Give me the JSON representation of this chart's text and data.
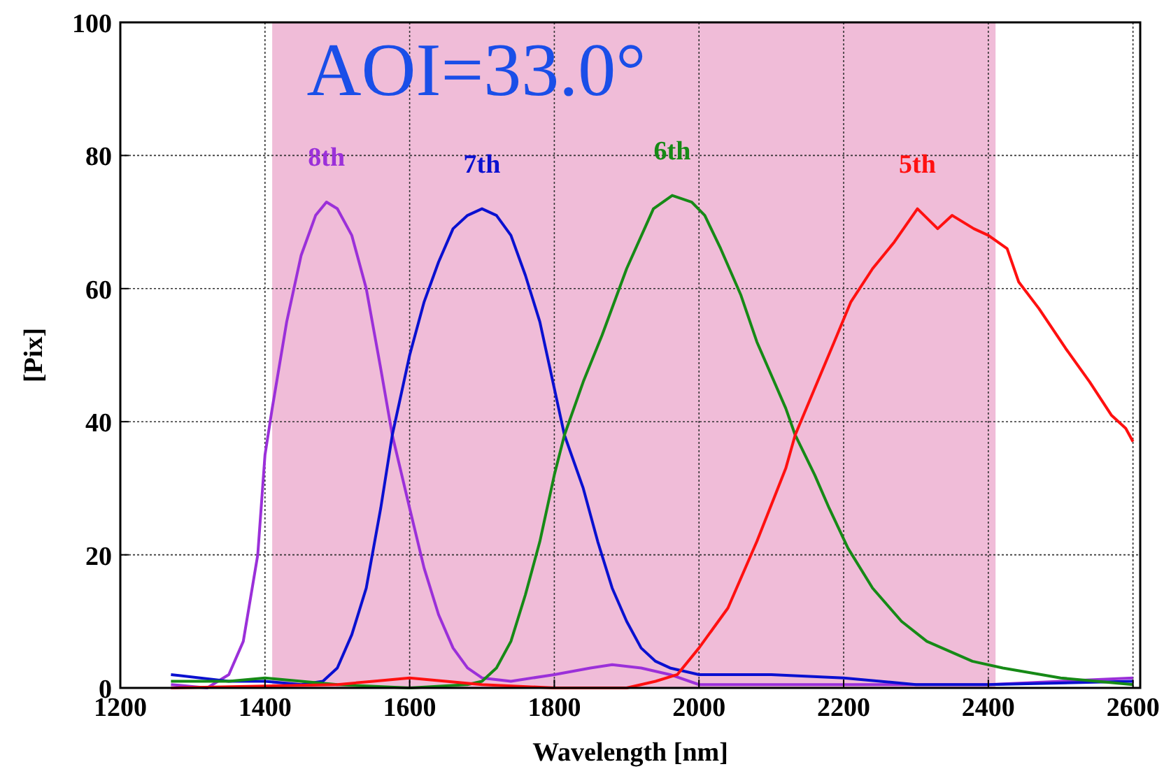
{
  "chart_data": {
    "type": "line",
    "title": "AOI=33.0°",
    "xlabel": "Wavelength [nm]",
    "ylabel": "[Pix]",
    "xlim": [
      1200,
      2610
    ],
    "ylim": [
      0,
      100
    ],
    "xticks": [
      1200,
      1400,
      1600,
      1800,
      2000,
      2200,
      2400,
      2600
    ],
    "yticks": [
      0,
      20,
      40,
      60,
      80,
      100
    ],
    "grid": true,
    "bands": [
      {
        "axis": "x",
        "from": 1410,
        "to": 2410,
        "color": "#f0bcd8"
      }
    ],
    "series": [
      {
        "name": "8th",
        "color": "#9b30d9",
        "x": [
          1270,
          1320,
          1350,
          1370,
          1390,
          1400,
          1410,
          1430,
          1450,
          1470,
          1485,
          1500,
          1520,
          1540,
          1560,
          1576,
          1600,
          1620,
          1640,
          1660,
          1680,
          1700,
          1740,
          1800,
          1850,
          1880,
          1920,
          1960,
          2000,
          2100,
          2200,
          2300,
          2400,
          2500,
          2600
        ],
        "values": [
          0.5,
          0,
          2,
          7,
          20,
          35,
          42,
          55,
          65,
          71,
          73,
          72,
          68,
          60,
          48,
          38,
          27,
          18,
          11,
          6,
          3,
          1.5,
          1,
          2,
          3,
          3.5,
          3,
          2,
          0.5,
          0.5,
          0.5,
          0.5,
          0.5,
          1,
          1.5
        ]
      },
      {
        "name": "7th",
        "color": "#0a10d0",
        "x": [
          1270,
          1350,
          1400,
          1450,
          1480,
          1500,
          1520,
          1540,
          1560,
          1576,
          1600,
          1620,
          1640,
          1660,
          1680,
          1700,
          1720,
          1740,
          1760,
          1780,
          1800,
          1814,
          1840,
          1860,
          1880,
          1900,
          1920,
          1940,
          1960,
          2000,
          2100,
          2200,
          2300,
          2400,
          2600
        ],
        "values": [
          2,
          1,
          1,
          0.5,
          1,
          3,
          8,
          15,
          27,
          38,
          50,
          58,
          64,
          69,
          71,
          72,
          71,
          68,
          62,
          55,
          45,
          38,
          30,
          22,
          15,
          10,
          6,
          4,
          3,
          2,
          2,
          1.5,
          0.5,
          0.5,
          1
        ]
      },
      {
        "name": "6th",
        "color": "#168a16",
        "x": [
          1270,
          1350,
          1400,
          1450,
          1500,
          1600,
          1680,
          1700,
          1720,
          1740,
          1760,
          1780,
          1800,
          1814,
          1840,
          1866,
          1900,
          1937,
          1963,
          1990,
          2008,
          2030,
          2058,
          2080,
          2100,
          2120,
          2133,
          2160,
          2180,
          2206,
          2240,
          2280,
          2315,
          2378,
          2420,
          2500,
          2600
        ],
        "values": [
          1,
          1,
          1.5,
          1,
          0.5,
          0,
          0.5,
          1,
          3,
          7,
          14,
          22,
          32,
          38,
          46,
          53,
          63,
          72,
          74,
          73,
          71,
          66,
          59,
          52,
          47,
          42,
          38,
          32,
          27,
          21,
          15,
          10,
          7,
          4,
          3,
          1.5,
          0.5
        ]
      },
      {
        "name": "5th",
        "color": "#ff1010",
        "x": [
          1270,
          1500,
          1550,
          1600,
          1650,
          1700,
          1800,
          1900,
          1940,
          1970,
          2000,
          2040,
          2080,
          2120,
          2133,
          2160,
          2187,
          2210,
          2240,
          2270,
          2302,
          2330,
          2350,
          2380,
          2400,
          2426,
          2442,
          2470,
          2507,
          2540,
          2570,
          2590,
          2600
        ],
        "values": [
          0,
          0.5,
          1,
          1.5,
          1,
          0.5,
          0,
          0,
          1,
          2,
          6,
          12,
          22,
          33,
          38,
          45,
          52,
          58,
          63,
          67,
          72,
          69,
          71,
          69,
          68,
          66,
          61,
          57,
          51,
          46,
          41,
          39,
          37
        ]
      }
    ]
  }
}
